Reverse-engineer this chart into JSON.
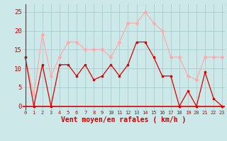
{
  "x": [
    0,
    1,
    2,
    3,
    4,
    5,
    6,
    7,
    8,
    9,
    10,
    11,
    12,
    13,
    14,
    15,
    16,
    17,
    18,
    19,
    20,
    21,
    22,
    23
  ],
  "avg_wind": [
    13,
    0,
    11,
    0,
    11,
    11,
    8,
    11,
    7,
    8,
    11,
    8,
    11,
    17,
    17,
    13,
    8,
    8,
    0,
    4,
    0,
    9,
    2,
    0
  ],
  "gust_wind": [
    13,
    3,
    19,
    8,
    13,
    17,
    17,
    15,
    15,
    15,
    13,
    17,
    22,
    22,
    25,
    22,
    20,
    13,
    13,
    8,
    7,
    13,
    13,
    13
  ],
  "avg_color": "#dd0000",
  "gust_color": "#ffaaaa",
  "bg_color": "#cce8e8",
  "grid_color": "#aacccc",
  "xlabel": "Vent moyen/en rafales ( km/h )",
  "xlabel_color": "#cc0000",
  "tick_color": "#cc0000",
  "ylim": [
    -1,
    27
  ],
  "yticks": [
    0,
    5,
    10,
    15,
    20,
    25
  ],
  "xlim": [
    -0.3,
    23.3
  ],
  "marker_avg": "s",
  "marker_gust": "D",
  "linewidth": 0.9,
  "markersize": 2.0
}
